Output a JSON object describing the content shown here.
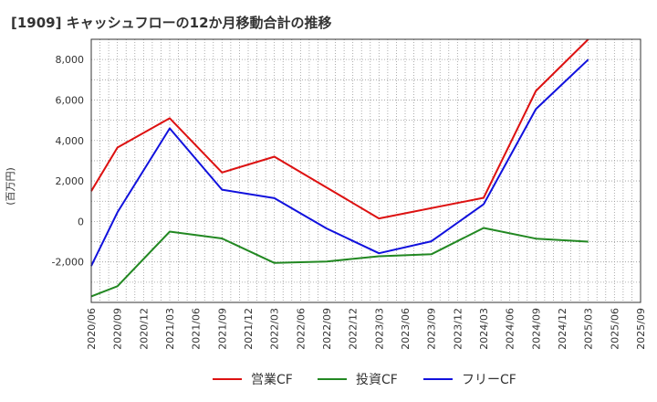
{
  "chart_data": {
    "type": "line",
    "title": "[1909]  キャッシュフローの12か月移動合計の推移",
    "xlabel": "",
    "ylabel": "(百万円)",
    "ylim": [
      -4000,
      9000
    ],
    "yticks": [
      -2000,
      0,
      2000,
      4000,
      6000,
      8000
    ],
    "ytick_labels": [
      "-2,000",
      "0",
      "2,000",
      "4,000",
      "6,000",
      "8,000"
    ],
    "categories": [
      "2020/06",
      "2020/09",
      "2020/12",
      "2021/03",
      "2021/06",
      "2021/09",
      "2021/12",
      "2022/03",
      "2022/06",
      "2022/09",
      "2022/12",
      "2023/03",
      "2023/06",
      "2023/09",
      "2023/12",
      "2024/03",
      "2024/06",
      "2024/09",
      "2024/12",
      "2025/03",
      "2025/06",
      "2025/09"
    ],
    "grid": true,
    "legend_position": "bottom",
    "series": [
      {
        "name": "営業CF",
        "color": "#dd1111",
        "values": [
          1500,
          3650,
          null,
          5100,
          null,
          2420,
          null,
          3200,
          null,
          null,
          null,
          150,
          null,
          null,
          null,
          1170,
          null,
          6450,
          null,
          9000,
          null,
          null
        ]
      },
      {
        "name": "投資CF",
        "color": "#228822",
        "values": [
          -3700,
          -3200,
          null,
          -500,
          null,
          -840,
          null,
          -2050,
          null,
          -1980,
          null,
          -1720,
          null,
          -1620,
          null,
          -320,
          null,
          -850,
          null,
          -1000,
          null,
          null
        ]
      },
      {
        "name": "フリーCF",
        "color": "#1111dd",
        "values": [
          -2200,
          450,
          null,
          4600,
          null,
          1570,
          null,
          1150,
          null,
          -350,
          null,
          -1570,
          null,
          -980,
          null,
          850,
          null,
          5550,
          null,
          8000,
          null,
          null
        ]
      }
    ]
  }
}
